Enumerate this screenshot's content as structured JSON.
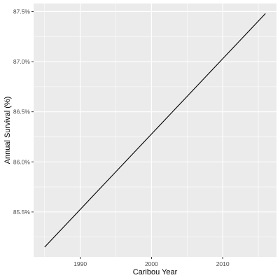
{
  "chart_data": {
    "type": "line",
    "title": "",
    "xlabel": "Caribou Year",
    "ylabel": "Annual Survival (%)",
    "xlim": [
      1983.45,
      2017.55
    ],
    "ylim": [
      85.052,
      87.58
    ],
    "x_ticks": [
      1990,
      2000,
      2010
    ],
    "x_tick_labels": [
      "1990",
      "2000",
      "2010"
    ],
    "y_ticks": [
      85.5,
      86.0,
      86.5,
      87.0,
      87.5
    ],
    "y_tick_labels": [
      "85.5%",
      "86.0%",
      "86.5%",
      "87.0%",
      "87.5%"
    ],
    "grid": true,
    "series": [
      {
        "x": [
          1985,
          2016
        ],
        "y": [
          85.15,
          87.48
        ],
        "color": "#000000"
      }
    ],
    "panel_color": "#ebebeb",
    "grid_color": "#ffffff"
  }
}
